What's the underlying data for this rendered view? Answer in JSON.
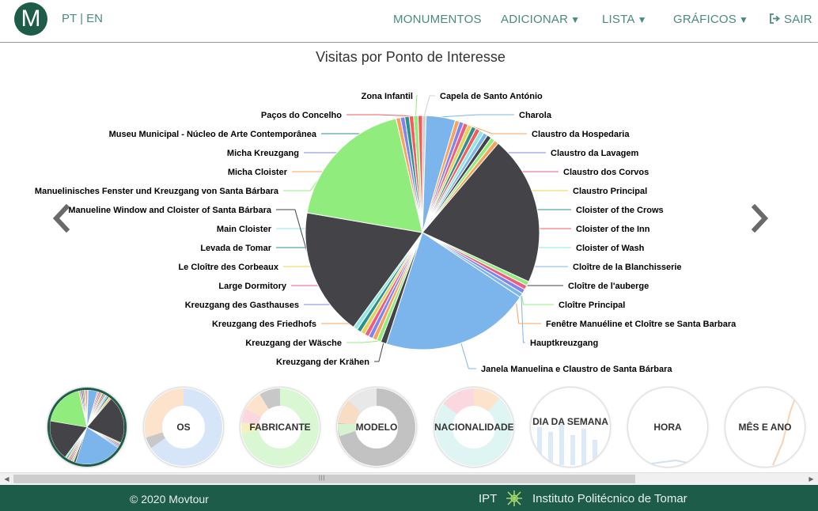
{
  "header": {
    "logo_letter": "M",
    "lang": {
      "pt": "PT",
      "sep": " | ",
      "en": "EN"
    },
    "nav": [
      {
        "label": "MONUMENTOS",
        "caret": ""
      },
      {
        "label": "ADICIONAR",
        "caret": "▼"
      },
      {
        "label": "LISTA",
        "caret": "▼"
      },
      {
        "label": "GRÁFICOS",
        "caret": "▼"
      }
    ],
    "logout": {
      "label": "SAIR",
      "icon": "sign-out-icon"
    }
  },
  "chart_data": {
    "type": "pie",
    "title": "Visitas por Ponto de Interesse",
    "slices": [
      {
        "label": "Capela de Santo António",
        "value": 0.5,
        "color": "#d0d0d0"
      },
      {
        "label": "Charola",
        "value": 4.0,
        "color": "#7cb5ec"
      },
      {
        "label": "Claustro da Hospedaria",
        "value": 0.6,
        "color": "#f7a35c"
      },
      {
        "label": "Claustro da Lavagem",
        "value": 0.6,
        "color": "#8085e9"
      },
      {
        "label": "Claustro dos Corvos",
        "value": 0.6,
        "color": "#f15c80"
      },
      {
        "label": "Claustro Principal",
        "value": 0.6,
        "color": "#e4d354"
      },
      {
        "label": "Cloister of the Crows",
        "value": 0.6,
        "color": "#2b908f"
      },
      {
        "label": "Cloister of the Inn",
        "value": 0.6,
        "color": "#f45b5b"
      },
      {
        "label": "Cloister of Wash",
        "value": 0.6,
        "color": "#91e8e1"
      },
      {
        "label": "Cloître de la Blanchisserie",
        "value": 0.6,
        "color": "#7cb5ec"
      },
      {
        "label": "Cloître de l'auberge",
        "value": 0.6,
        "color": "#434348"
      },
      {
        "label": "Cloître Principal",
        "value": 0.6,
        "color": "#90ed7d"
      },
      {
        "label": "Fenêtre Manuéline et Cloître se Santa Barbara",
        "value": 0.6,
        "color": "#f7a35c"
      },
      {
        "label": "",
        "value": 20.5,
        "color": "#434348"
      },
      {
        "label": "",
        "value": 0.6,
        "color": "#90ed7d"
      },
      {
        "label": "",
        "value": 0.6,
        "color": "#f15c80"
      },
      {
        "label": "",
        "value": 0.6,
        "color": "#8085e9"
      },
      {
        "label": "Hauptkreuzgang",
        "value": 0.6,
        "color": "#7cb5ec"
      },
      {
        "label": "Janela Manuelina e Claustro de Santa Bárbara",
        "value": 20.5,
        "color": "#7cb5ec"
      },
      {
        "label": "Kreuzgang der Krähen",
        "value": 0.8,
        "color": "#434348"
      },
      {
        "label": "Kreuzgang der Wäsche",
        "value": 0.6,
        "color": "#90ed7d"
      },
      {
        "label": "Kreuzgang des Friedhofs",
        "value": 0.6,
        "color": "#f7a35c"
      },
      {
        "label": "Kreuzgang des Gasthauses",
        "value": 0.6,
        "color": "#8085e9"
      },
      {
        "label": "Large Dormitory",
        "value": 0.6,
        "color": "#f15c80"
      },
      {
        "label": "Le Cloître des Corbeaux",
        "value": 0.6,
        "color": "#e4d354"
      },
      {
        "label": "Levada de Tomar",
        "value": 0.6,
        "color": "#2b908f"
      },
      {
        "label": "Main Cloister",
        "value": 0.6,
        "color": "#91e8e1"
      },
      {
        "label": "Manueline Window and Cloister of Santa Bárbara",
        "value": 17.5,
        "color": "#434348"
      },
      {
        "label": "Manuelinisches Fenster und Kreuzgang von Santa Bárbara",
        "value": 18.5,
        "color": "#90ed7d"
      },
      {
        "label": "Micha Cloister",
        "value": 0.6,
        "color": "#f7a35c"
      },
      {
        "label": "Micha Kreuzgang",
        "value": 0.6,
        "color": "#8085e9"
      },
      {
        "label": "Museu Municipal - Núcleo de Arte Contemporânea",
        "value": 0.6,
        "color": "#2b908f"
      },
      {
        "label": "Paços do Concelho",
        "value": 0.6,
        "color": "#f45b5b"
      },
      {
        "label": "Zona Infantil",
        "value": 0.6,
        "color": "#90ed7d"
      },
      {
        "label": "",
        "value": 0.6,
        "color": "#f45b5b"
      }
    ]
  },
  "thumbnails": [
    {
      "label": "",
      "kind": "pie-mini"
    },
    {
      "label": "OS",
      "kind": "donut-os"
    },
    {
      "label": "FABRICANTE",
      "kind": "donut-fab"
    },
    {
      "label": "MODELO",
      "kind": "donut-modelo"
    },
    {
      "label": "NACIONALIDADE",
      "kind": "donut-nac"
    },
    {
      "label": "DIA DA SEMANA",
      "kind": "bars"
    },
    {
      "label": "HORA",
      "kind": "line"
    },
    {
      "label": "MÊS E ANO",
      "kind": "line2"
    }
  ],
  "footer": {
    "copyright": "© 2020 Movtour",
    "ipt": "IPT",
    "institution": "Instituto Politécnico de Tomar"
  }
}
